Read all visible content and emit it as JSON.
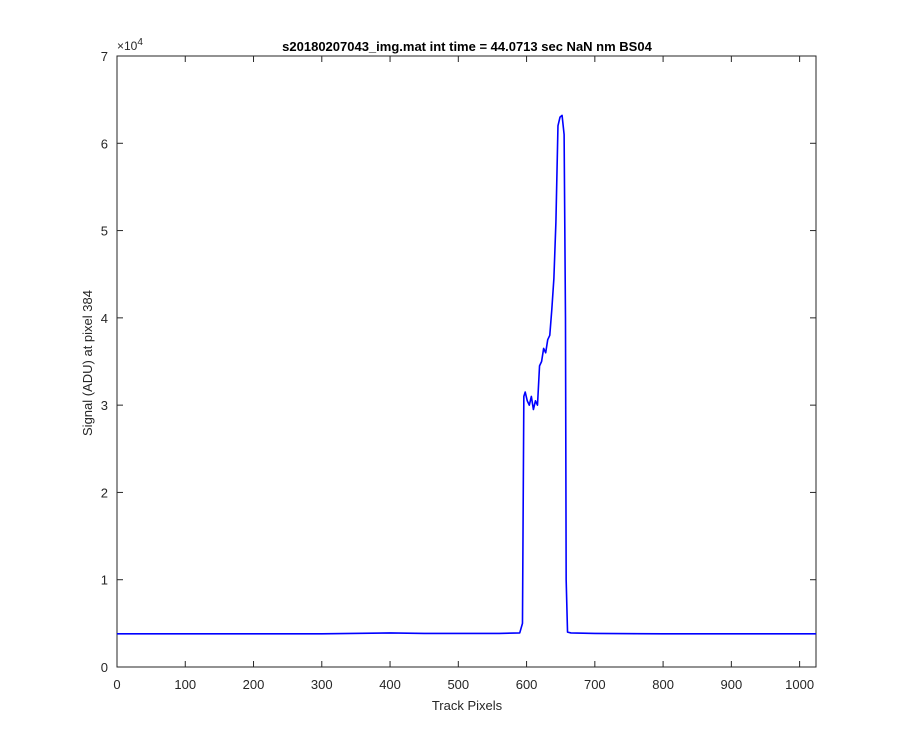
{
  "chart_data": {
    "type": "line",
    "title": "s20180207043_img.mat int time = 44.0713 sec  NaN nm BS04",
    "xlabel": "Track Pixels",
    "ylabel": "Signal (ADU) at pixel 384",
    "xlim": [
      0,
      1024
    ],
    "ylim": [
      0,
      70000
    ],
    "x_ticks": [
      0,
      100,
      200,
      300,
      400,
      500,
      600,
      700,
      800,
      900,
      1000
    ],
    "y_ticks": [
      0,
      10000,
      20000,
      30000,
      40000,
      50000,
      60000,
      70000
    ],
    "x_tick_labels": [
      "0",
      "100",
      "200",
      "300",
      "400",
      "500",
      "600",
      "700",
      "800",
      "900",
      "1000"
    ],
    "y_tick_labels": [
      "0",
      "1",
      "2",
      "3",
      "4",
      "5",
      "6",
      "7"
    ],
    "y_exponent_label": "×10",
    "y_exponent_power": "4",
    "grid": false,
    "series": [
      {
        "color": "#0000ff",
        "x": [
          0,
          100,
          200,
          300,
          400,
          450,
          500,
          560,
          590,
          594,
          596,
          598,
          601,
          604,
          607,
          610,
          613,
          616,
          619,
          622,
          625,
          628,
          631,
          634,
          637,
          640,
          643,
          646,
          649,
          652,
          655,
          657,
          658,
          660,
          665,
          700,
          800,
          900,
          1024
        ],
        "y": [
          3800,
          3800,
          3800,
          3800,
          3900,
          3850,
          3850,
          3850,
          3900,
          5000,
          31000,
          31500,
          30500,
          30000,
          31000,
          29500,
          30500,
          30000,
          34500,
          35000,
          36500,
          36000,
          37500,
          38000,
          41000,
          44500,
          51000,
          62000,
          63000,
          63200,
          61000,
          40000,
          10000,
          4000,
          3900,
          3850,
          3800,
          3800,
          3800
        ]
      }
    ]
  }
}
